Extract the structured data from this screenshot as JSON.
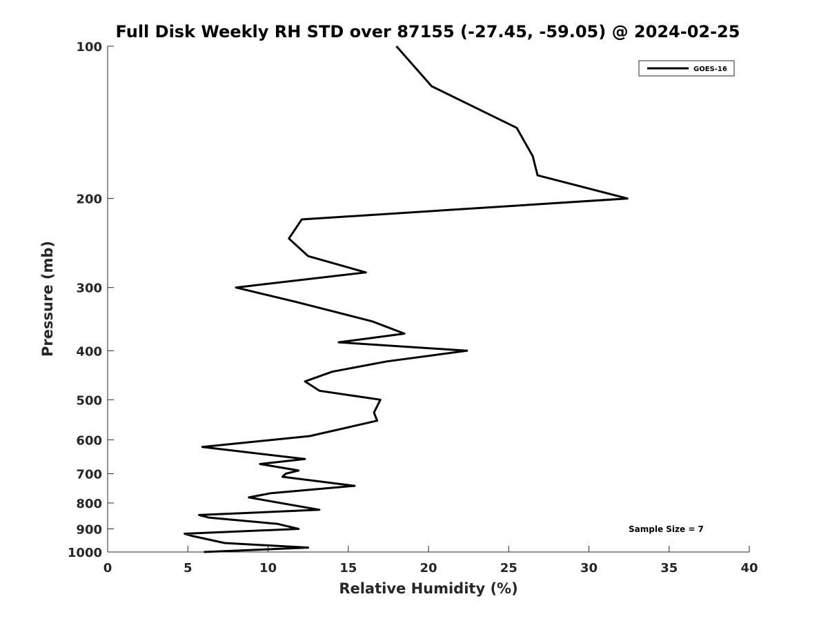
{
  "chart_data": {
    "type": "line",
    "title": "Full Disk Weekly RH STD over 87155 (-27.45, -59.05) @ 2024-02-25",
    "xlabel": "Relative Humidity (%)",
    "ylabel": "Pressure (mb)",
    "xlim": [
      0,
      40
    ],
    "ylim": [
      100,
      1000
    ],
    "y_scale": "log",
    "y_reversed": true,
    "grid": false,
    "legend_position": "top-right",
    "x_ticks": [
      0,
      5,
      10,
      15,
      20,
      25,
      30,
      35,
      40
    ],
    "y_ticks": [
      100,
      200,
      300,
      400,
      500,
      600,
      700,
      800,
      900,
      1000
    ],
    "annotation": "Sample Size = 7",
    "series": [
      {
        "name": "GOES-16",
        "color": "#000000",
        "points": [
          [
            18.0,
            100
          ],
          [
            20.2,
            120
          ],
          [
            25.5,
            145
          ],
          [
            26.5,
            165
          ],
          [
            26.8,
            180
          ],
          [
            32.4,
            200
          ],
          [
            12.1,
            220
          ],
          [
            11.3,
            240
          ],
          [
            12.5,
            260
          ],
          [
            16.1,
            280
          ],
          [
            8.0,
            300
          ],
          [
            11.7,
            320
          ],
          [
            16.5,
            350
          ],
          [
            18.5,
            370
          ],
          [
            14.4,
            385
          ],
          [
            22.4,
            400
          ],
          [
            17.4,
            420
          ],
          [
            14.0,
            440
          ],
          [
            12.3,
            460
          ],
          [
            13.2,
            480
          ],
          [
            17.0,
            500
          ],
          [
            16.6,
            530
          ],
          [
            16.8,
            550
          ],
          [
            12.6,
            590
          ],
          [
            5.9,
            620
          ],
          [
            12.3,
            655
          ],
          [
            9.5,
            670
          ],
          [
            11.9,
            690
          ],
          [
            11.1,
            700
          ],
          [
            10.9,
            710
          ],
          [
            15.4,
            740
          ],
          [
            10.2,
            765
          ],
          [
            8.8,
            780
          ],
          [
            13.2,
            825
          ],
          [
            5.7,
            845
          ],
          [
            6.3,
            855
          ],
          [
            10.6,
            880
          ],
          [
            11.9,
            900
          ],
          [
            4.8,
            920
          ],
          [
            5.3,
            930
          ],
          [
            7.3,
            960
          ],
          [
            12.5,
            980
          ],
          [
            6.0,
            1000
          ]
        ]
      }
    ]
  }
}
